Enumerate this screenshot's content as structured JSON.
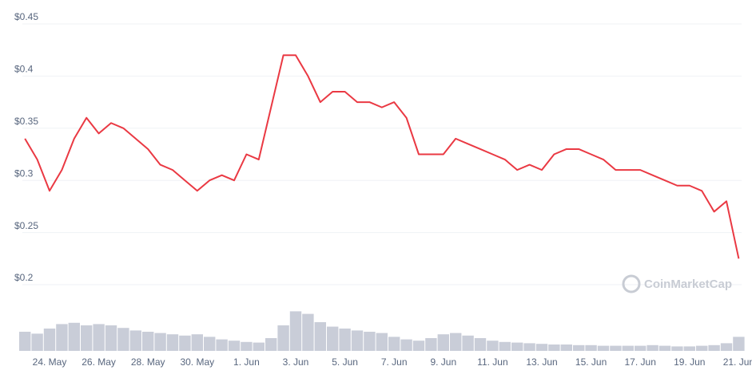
{
  "chart_data": {
    "type": "line",
    "watermark": "CoinMarketCap",
    "categories": [
      null,
      null,
      "24. May",
      null,
      null,
      null,
      "26. May",
      null,
      null,
      null,
      "28. May",
      null,
      null,
      null,
      "30. May",
      null,
      null,
      null,
      "1. Jun",
      null,
      null,
      null,
      "3. Jun",
      null,
      null,
      null,
      "5. Jun",
      null,
      null,
      null,
      "7. Jun",
      null,
      null,
      null,
      "9. Jun",
      null,
      null,
      null,
      "11. Jun",
      null,
      null,
      null,
      "13. Jun",
      null,
      null,
      null,
      "15. Jun",
      null,
      null,
      null,
      "17. Jun",
      null,
      null,
      null,
      "19. Jun",
      null,
      null,
      null,
      "21. Jun"
    ],
    "series": [
      {
        "color": "#ea3943",
        "values": [
          0.34,
          0.32,
          0.29,
          0.31,
          0.34,
          0.36,
          0.345,
          0.355,
          0.35,
          0.34,
          0.33,
          0.315,
          0.31,
          0.3,
          0.29,
          0.3,
          0.305,
          0.3,
          0.325,
          0.32,
          0.37,
          0.42,
          0.42,
          0.4,
          0.375,
          0.385,
          0.385,
          0.375,
          0.375,
          0.37,
          0.375,
          0.36,
          0.325,
          0.325,
          0.325,
          0.34,
          0.335,
          0.33,
          0.325,
          0.32,
          0.31,
          0.315,
          0.31,
          0.325,
          0.33,
          0.33,
          0.325,
          0.32,
          0.31,
          0.31,
          0.31,
          0.305,
          0.3,
          0.295,
          0.295,
          0.29,
          0.27,
          0.28,
          0.225
        ]
      },
      {
        "color": "#c9cdd8",
        "axis": "y2",
        "type": "bar",
        "values": [
          30,
          27,
          35,
          42,
          44,
          40,
          42,
          40,
          36,
          32,
          30,
          28,
          26,
          24,
          26,
          22,
          18,
          16,
          14,
          13,
          20,
          40,
          62,
          58,
          45,
          38,
          35,
          32,
          30,
          28,
          22,
          18,
          16,
          20,
          26,
          28,
          24,
          20,
          16,
          14,
          13,
          12,
          11,
          10,
          10,
          9,
          9,
          8,
          8,
          8,
          8,
          9,
          8,
          7,
          7,
          8,
          9,
          12,
          22
        ]
      }
    ],
    "ylim": [
      0.2,
      0.45
    ],
    "yticks": [
      {
        "value": 0.2,
        "label": "$0.2"
      },
      {
        "value": 0.25,
        "label": "$0.25"
      },
      {
        "value": 0.3,
        "label": "$0.3"
      },
      {
        "value": 0.35,
        "label": "$0.35"
      },
      {
        "value": 0.4,
        "label": "$0.4"
      },
      {
        "value": 0.45,
        "label": "$0.45"
      }
    ],
    "y2lim": [
      0,
      100
    ],
    "grid": true
  }
}
